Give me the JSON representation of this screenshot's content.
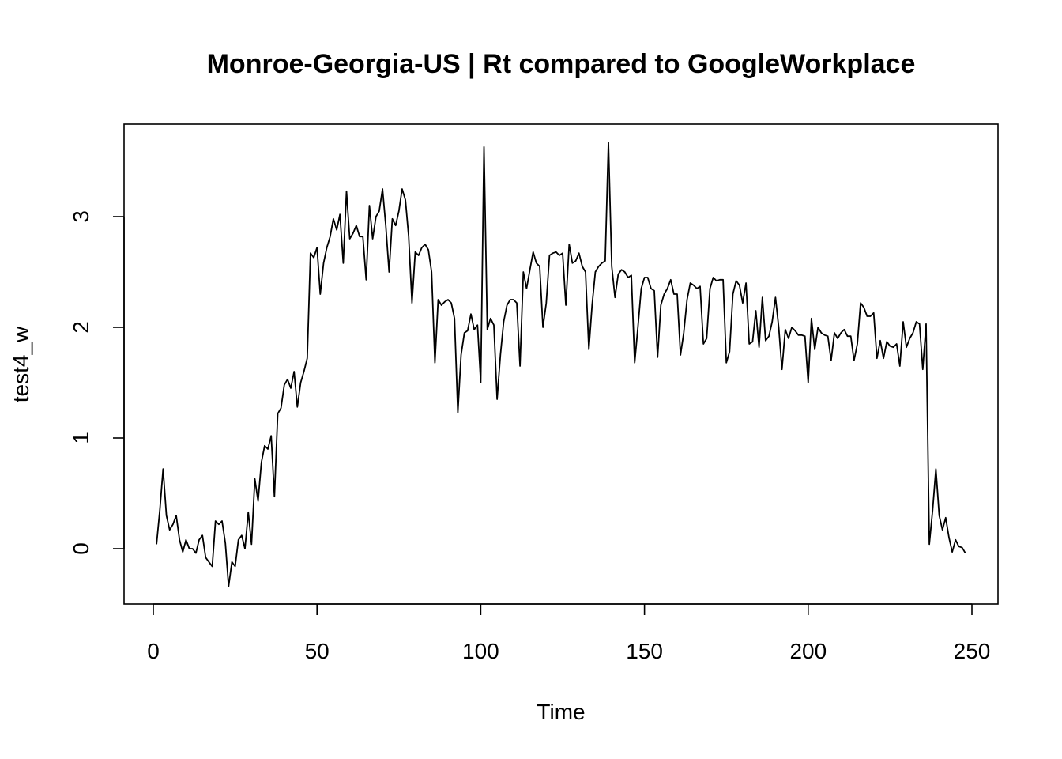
{
  "chart_data": {
    "type": "line",
    "title": "Monroe-Georgia-US | Rt compared to GoogleWorkplace",
    "xlabel": "Time",
    "ylabel": "test4_w",
    "xlim": [
      0,
      250
    ],
    "ylim": [
      -0.35,
      3.7
    ],
    "xticks": [
      0,
      50,
      100,
      150,
      200,
      250
    ],
    "yticks": [
      0,
      1,
      2,
      3
    ],
    "grid": false,
    "legend": "none",
    "line_color": "#000000",
    "series": [
      {
        "x": [
          1,
          2,
          3,
          4,
          5,
          6,
          7,
          8,
          9,
          10,
          11,
          12,
          13,
          14,
          15,
          16,
          17,
          18,
          19,
          20,
          21,
          22,
          23,
          24,
          25,
          26,
          27,
          28,
          29,
          30,
          31,
          32,
          33,
          34,
          35,
          36,
          37,
          38,
          39,
          40,
          41,
          42,
          43,
          44,
          45,
          46,
          47,
          48,
          49,
          50,
          51,
          52,
          53,
          54,
          55,
          56,
          57,
          58,
          59,
          60,
          61,
          62,
          63,
          64,
          65,
          66,
          67,
          68,
          69,
          70,
          71,
          72,
          73,
          74,
          75,
          76,
          77,
          78,
          79,
          80,
          81,
          82,
          83,
          84,
          85,
          86,
          87,
          88,
          89,
          90,
          91,
          92,
          93,
          94,
          95,
          96,
          97,
          98,
          99,
          100,
          101,
          102,
          103,
          104,
          105,
          106,
          107,
          108,
          109,
          110,
          111,
          112,
          113,
          114,
          115,
          116,
          117,
          118,
          119,
          120,
          121,
          122,
          123,
          124,
          125,
          126,
          127,
          128,
          129,
          130,
          131,
          132,
          133,
          134,
          135,
          136,
          137,
          138,
          139,
          140,
          141,
          142,
          143,
          144,
          145,
          146,
          147,
          148,
          149,
          150,
          151,
          152,
          153,
          154,
          155,
          156,
          157,
          158,
          159,
          160,
          161,
          162,
          163,
          164,
          165,
          166,
          167,
          168,
          169,
          170,
          171,
          172,
          173,
          174,
          175,
          176,
          177,
          178,
          179,
          180,
          181,
          182,
          183,
          184,
          185,
          186,
          187,
          188,
          189,
          190,
          191,
          192,
          193,
          194,
          195,
          196,
          197,
          198,
          199,
          200,
          201,
          202,
          203,
          204,
          205,
          206,
          207,
          208,
          209,
          210,
          211,
          212,
          213,
          214,
          215,
          216,
          217,
          218,
          219,
          220,
          221,
          222,
          223,
          224,
          225,
          226,
          227,
          228,
          229,
          230,
          231,
          232,
          233,
          234,
          235,
          236,
          237,
          238,
          239,
          240,
          241,
          242,
          243,
          244,
          245,
          246,
          247,
          248
        ],
        "values": [
          0.04,
          0.35,
          0.72,
          0.3,
          0.17,
          0.22,
          0.3,
          0.08,
          -0.03,
          0.08,
          0.0,
          0.0,
          -0.04,
          0.08,
          0.12,
          -0.08,
          -0.12,
          -0.16,
          0.25,
          0.22,
          0.25,
          0.05,
          -0.34,
          -0.12,
          -0.16,
          0.08,
          0.12,
          0.0,
          0.33,
          0.04,
          0.63,
          0.43,
          0.78,
          0.93,
          0.9,
          1.02,
          0.47,
          1.22,
          1.27,
          1.48,
          1.53,
          1.45,
          1.6,
          1.28,
          1.5,
          1.6,
          1.72,
          2.67,
          2.63,
          2.72,
          2.3,
          2.58,
          2.72,
          2.82,
          2.98,
          2.88,
          3.02,
          2.58,
          3.23,
          2.8,
          2.85,
          2.92,
          2.82,
          2.82,
          2.43,
          3.1,
          2.8,
          3.0,
          3.05,
          3.25,
          2.92,
          2.5,
          2.98,
          2.92,
          3.05,
          3.25,
          3.15,
          2.82,
          2.22,
          2.68,
          2.65,
          2.72,
          2.75,
          2.7,
          2.5,
          1.68,
          2.25,
          2.2,
          2.23,
          2.25,
          2.22,
          2.08,
          1.23,
          1.75,
          1.95,
          1.97,
          2.12,
          1.98,
          2.02,
          1.5,
          3.63,
          1.98,
          2.08,
          2.02,
          1.35,
          1.75,
          2.05,
          2.2,
          2.25,
          2.25,
          2.22,
          1.65,
          2.5,
          2.35,
          2.52,
          2.68,
          2.58,
          2.55,
          2.0,
          2.22,
          2.65,
          2.67,
          2.68,
          2.65,
          2.67,
          2.2,
          2.75,
          2.58,
          2.6,
          2.67,
          2.55,
          2.5,
          1.8,
          2.2,
          2.5,
          2.55,
          2.58,
          2.6,
          3.67,
          2.55,
          2.27,
          2.48,
          2.52,
          2.5,
          2.45,
          2.47,
          1.68,
          2.0,
          2.35,
          2.45,
          2.45,
          2.35,
          2.33,
          1.73,
          2.2,
          2.3,
          2.35,
          2.43,
          2.3,
          2.3,
          1.75,
          1.95,
          2.25,
          2.4,
          2.38,
          2.35,
          2.37,
          1.85,
          1.9,
          2.35,
          2.45,
          2.42,
          2.43,
          2.43,
          1.68,
          1.78,
          2.3,
          2.42,
          2.38,
          2.22,
          2.4,
          1.85,
          1.87,
          2.15,
          1.82,
          2.27,
          1.88,
          1.92,
          2.05,
          2.27,
          2.0,
          1.62,
          1.98,
          1.9,
          2.0,
          1.97,
          1.93,
          1.93,
          1.92,
          1.5,
          2.08,
          1.8,
          2.0,
          1.95,
          1.93,
          1.92,
          1.7,
          1.95,
          1.9,
          1.95,
          1.98,
          1.92,
          1.92,
          1.7,
          1.85,
          2.22,
          2.18,
          2.1,
          2.1,
          2.13,
          1.72,
          1.88,
          1.72,
          1.87,
          1.83,
          1.82,
          1.85,
          1.65,
          2.05,
          1.82,
          1.9,
          1.95,
          2.05,
          2.03,
          1.62,
          2.03,
          0.04,
          0.35,
          0.72,
          0.3,
          0.17,
          0.28,
          0.1,
          -0.03,
          0.08,
          0.02,
          0.01,
          -0.04
        ]
      }
    ]
  }
}
